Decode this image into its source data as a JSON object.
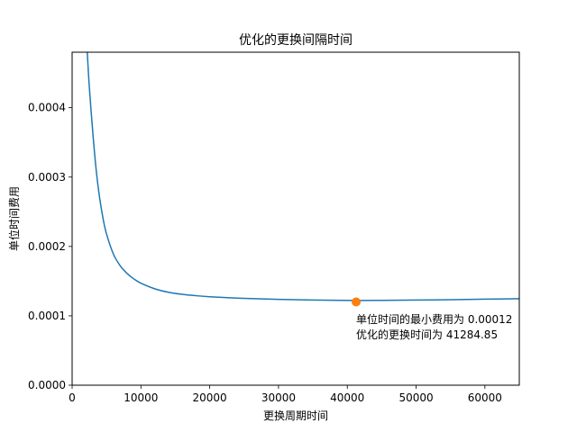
{
  "chart_data": {
    "type": "line",
    "title": "优化的更换间隔时间",
    "xlabel": "更换周期时间",
    "ylabel": "单位时间费用",
    "xlim": [
      0,
      65000
    ],
    "ylim": [
      0,
      0.00048
    ],
    "xticks": [
      0,
      10000,
      20000,
      30000,
      40000,
      50000,
      60000
    ],
    "xtick_labels": [
      "0",
      "10000",
      "20000",
      "30000",
      "40000",
      "50000",
      "60000"
    ],
    "yticks": [
      0,
      0.0001,
      0.0002,
      0.0003,
      0.0004
    ],
    "ytick_labels": [
      "0.0000",
      "0.0001",
      "0.0002",
      "0.0003",
      "0.0004"
    ],
    "series": [
      {
        "color": "#1f77b4",
        "x": [
          2200,
          2500,
          3000,
          3500,
          4000,
          4500,
          5000,
          6000,
          7000,
          8000,
          9000,
          10000,
          12000,
          14000,
          16000,
          18000,
          20000,
          23000,
          26000,
          30000,
          35000,
          41284.85,
          45000,
          50000,
          55000,
          60000,
          65000
        ],
        "y": [
          0.00048,
          0.00043,
          0.000365,
          0.00031,
          0.00027,
          0.00024,
          0.000218,
          0.000189,
          0.000172,
          0.000161,
          0.000153,
          0.000147,
          0.000139,
          0.000134,
          0.000131,
          0.000129,
          0.0001275,
          0.000126,
          0.0001248,
          0.0001237,
          0.0001228,
          0.00012218,
          0.0001223,
          0.0001227,
          0.0001233,
          0.000124,
          0.0001247
        ]
      }
    ],
    "optimum": {
      "x": 41284.85,
      "y": 0.00012,
      "color": "#ff7f0e"
    },
    "annotation": {
      "line1": "单位时间的最小费用为 0.00012",
      "line2": "优化的更换时间为 41284.85"
    },
    "grid": false,
    "legend": "none"
  }
}
